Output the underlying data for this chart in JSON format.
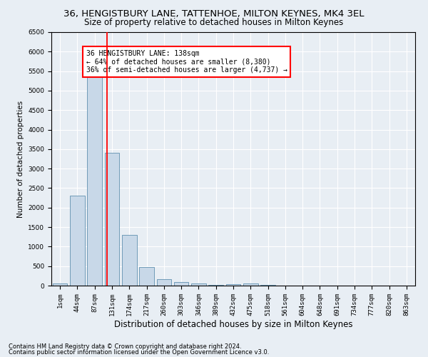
{
  "title1": "36, HENGISTBURY LANE, TATTENHOE, MILTON KEYNES, MK4 3EL",
  "title2": "Size of property relative to detached houses in Milton Keynes",
  "xlabel": "Distribution of detached houses by size in Milton Keynes",
  "ylabel": "Number of detached properties",
  "bin_labels": [
    "1sqm",
    "44sqm",
    "87sqm",
    "131sqm",
    "174sqm",
    "217sqm",
    "260sqm",
    "303sqm",
    "346sqm",
    "389sqm",
    "432sqm",
    "475sqm",
    "518sqm",
    "561sqm",
    "604sqm",
    "648sqm",
    "691sqm",
    "734sqm",
    "777sqm",
    "820sqm",
    "863sqm"
  ],
  "bar_heights": [
    60,
    2300,
    5450,
    3400,
    1300,
    480,
    160,
    90,
    55,
    25,
    30,
    55,
    10,
    5,
    5,
    5,
    5,
    5,
    5,
    5,
    5
  ],
  "bar_color": "#c8d8e8",
  "bar_edge_color": "#6090b0",
  "red_line_x": 2.72,
  "annotation_text": "36 HENGISTBURY LANE: 138sqm\n← 64% of detached houses are smaller (8,380)\n36% of semi-detached houses are larger (4,737) →",
  "annotation_box_color": "white",
  "annotation_box_edge": "red",
  "ylim": [
    0,
    6500
  ],
  "yticks": [
    0,
    500,
    1000,
    1500,
    2000,
    2500,
    3000,
    3500,
    4000,
    4500,
    5000,
    5500,
    6000,
    6500
  ],
  "footnote1": "Contains HM Land Registry data © Crown copyright and database right 2024.",
  "footnote2": "Contains public sector information licensed under the Open Government Licence v3.0.",
  "background_color": "#e8eef4",
  "grid_color": "white",
  "title1_fontsize": 9.5,
  "title2_fontsize": 8.5,
  "xlabel_fontsize": 8.5,
  "ylabel_fontsize": 7.5,
  "tick_fontsize": 6.5,
  "annot_fontsize": 7,
  "footnote_fontsize": 6
}
